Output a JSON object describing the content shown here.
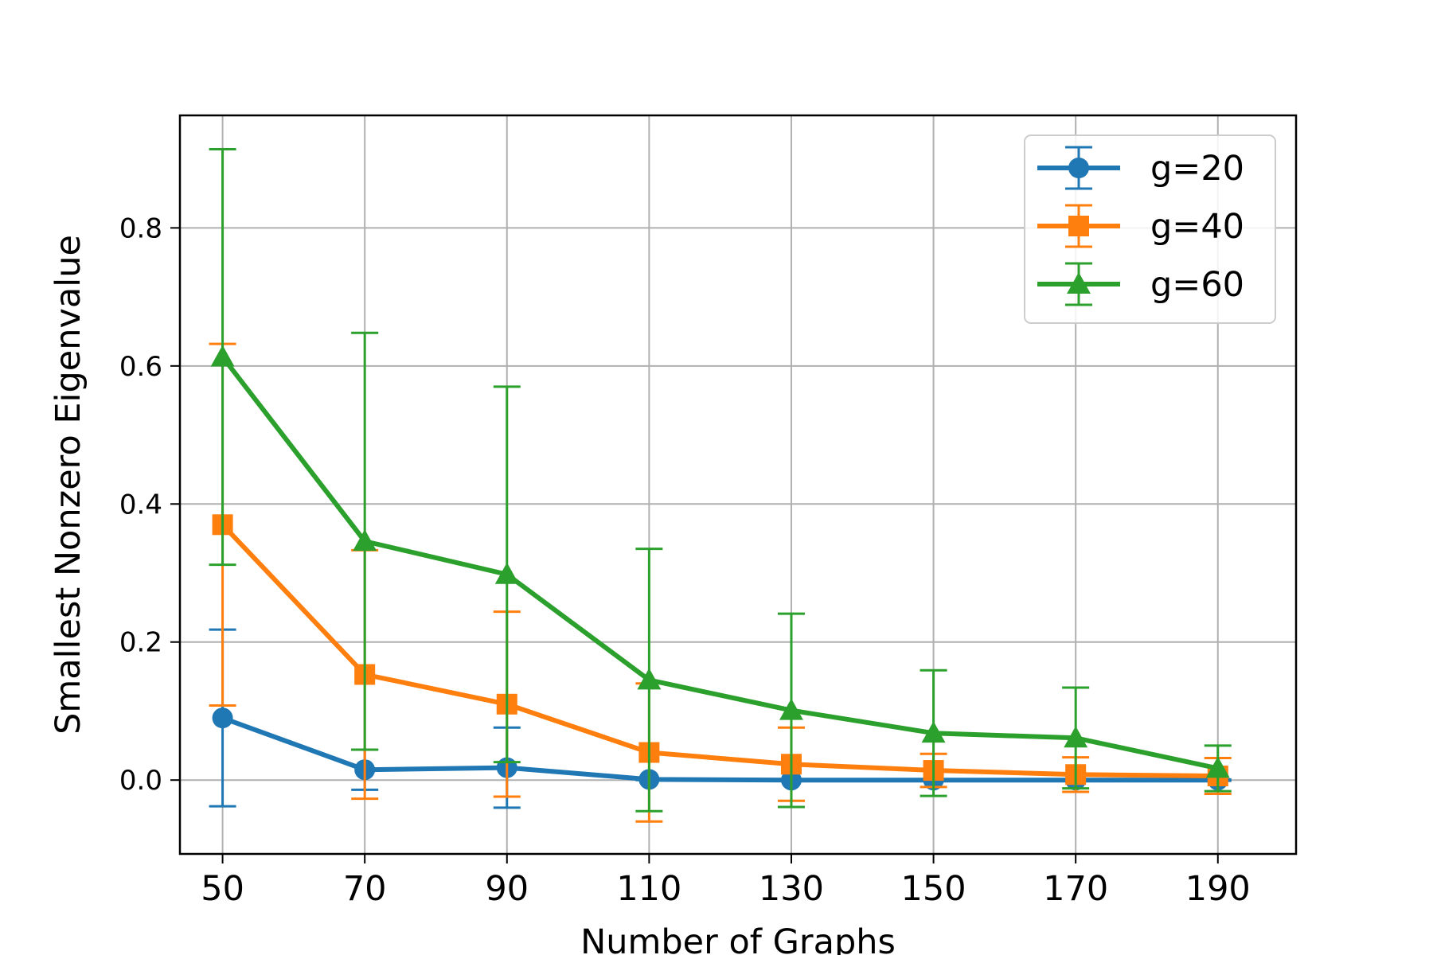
{
  "chart_data": {
    "type": "line",
    "title": "",
    "xlabel": "Number of Graphs",
    "ylabel": "Smallest Nonzero Eigenvalue",
    "x": [
      50,
      70,
      90,
      110,
      130,
      150,
      170,
      190
    ],
    "xticks": [
      "50",
      "70",
      "90",
      "110",
      "130",
      "150",
      "170",
      "190"
    ],
    "xlim": [
      44,
      201
    ],
    "ylim": [
      -0.107,
      0.963
    ],
    "yticks": [
      0.0,
      0.2,
      0.4,
      0.6,
      0.8
    ],
    "ytick_labels": [
      "0.0",
      "0.2",
      "0.4",
      "0.6",
      "0.8"
    ],
    "grid": true,
    "legend_position": "top-right",
    "series": [
      {
        "name": "g=20",
        "color": "#1f77b4",
        "marker": "circle",
        "values": [
          0.09,
          0.015,
          0.018,
          0.001,
          0.0,
          0.0,
          0.0,
          0.0
        ],
        "errors": [
          0.128,
          0.029,
          0.058,
          0.001,
          0.001,
          0.001,
          0.001,
          0.001
        ]
      },
      {
        "name": "g=40",
        "color": "#ff7f0e",
        "marker": "square",
        "values": [
          0.37,
          0.153,
          0.11,
          0.04,
          0.023,
          0.014,
          0.008,
          0.006
        ],
        "errors": [
          0.262,
          0.18,
          0.134,
          0.1,
          0.053,
          0.024,
          0.025,
          0.026
        ]
      },
      {
        "name": "g=60",
        "color": "#2ca02c",
        "marker": "triangle",
        "values": [
          0.613,
          0.346,
          0.298,
          0.145,
          0.101,
          0.068,
          0.061,
          0.017
        ],
        "errors": [
          0.301,
          0.302,
          0.272,
          0.19,
          0.14,
          0.091,
          0.073,
          0.033
        ]
      }
    ]
  }
}
